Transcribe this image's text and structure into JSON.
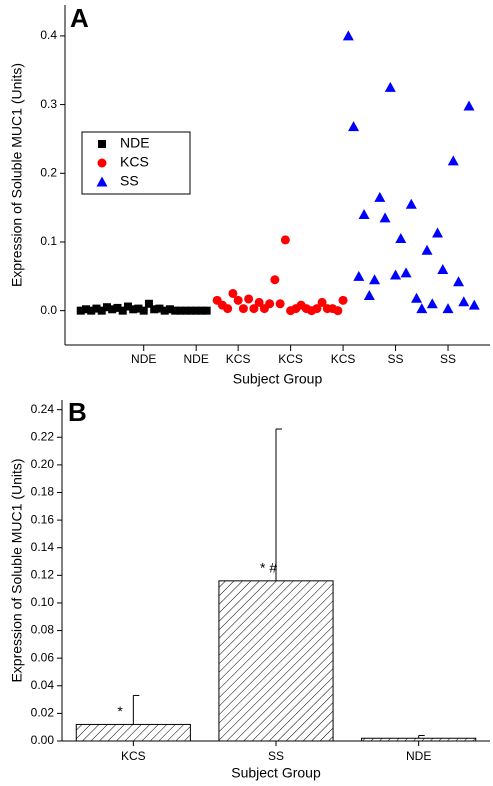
{
  "chart_data": [
    {
      "type": "scatter",
      "panel": "A",
      "y_label": "Expression of Soluble MUC1 (Units)",
      "x_label": "Subject Group",
      "xlim": [
        0,
        81
      ],
      "xticks": [
        {
          "value": 15,
          "label": "NDE"
        },
        {
          "value": 25,
          "label": "NDE"
        },
        {
          "value": 33,
          "label": "KCS"
        },
        {
          "value": 43,
          "label": "KCS"
        },
        {
          "value": 53,
          "label": "KCS"
        },
        {
          "value": 63,
          "label": "SS"
        },
        {
          "value": 73,
          "label": "SS"
        }
      ],
      "ylim": [
        -0.05,
        0.445
      ],
      "yticks": [
        {
          "value": 0,
          "label": "0.0"
        },
        0.1,
        0.2,
        0.3,
        0.4
      ],
      "legend_position": "middle left",
      "series": [
        {
          "name": "NDE",
          "color": "#000000",
          "marker": "square",
          "x": [
            3,
            4,
            5,
            6,
            7,
            8,
            9,
            10,
            11,
            12,
            13,
            14,
            15,
            16,
            17,
            18,
            19,
            20,
            21,
            22,
            23,
            24,
            25,
            26,
            27
          ],
          "values": [
            0,
            0.002,
            0,
            0.003,
            0,
            0.005,
            0.002,
            0.004,
            0,
            0.006,
            0.002,
            0.003,
            0,
            0.01,
            0.002,
            0.003,
            0,
            0.002,
            0,
            0,
            0,
            0,
            0,
            0,
            0
          ]
        },
        {
          "name": "KCS",
          "color": "#ff0000",
          "marker": "circle",
          "x": [
            29,
            30,
            31,
            32,
            33,
            34,
            35,
            36,
            37,
            38,
            39,
            40,
            41,
            42,
            43,
            44,
            45,
            46,
            47,
            48,
            49,
            50,
            51,
            52,
            53
          ],
          "values": [
            0.015,
            0.008,
            0.003,
            0.025,
            0.015,
            0.003,
            0.017,
            0.003,
            0.012,
            0.003,
            0.01,
            0.045,
            0.01,
            0.103,
            0,
            0.003,
            0.008,
            0.003,
            0,
            0.003,
            0.012,
            0.003,
            0.003,
            0,
            0.015
          ]
        },
        {
          "name": "SS",
          "color": "#0000ff",
          "marker": "triangle",
          "x": [
            54,
            55,
            56,
            57,
            58,
            59,
            60,
            61,
            62,
            63,
            64,
            65,
            66,
            67,
            68,
            69,
            70,
            71,
            72,
            73,
            74,
            75,
            76,
            77,
            78
          ],
          "values": [
            0.4,
            0.268,
            0.05,
            0.14,
            0.022,
            0.045,
            0.165,
            0.135,
            0.325,
            0.052,
            0.105,
            0.055,
            0.155,
            0.018,
            0.003,
            0.088,
            0.01,
            0.113,
            0.06,
            0.003,
            0.218,
            0.042,
            0.013,
            0.298,
            0.008
          ]
        }
      ]
    },
    {
      "type": "bar",
      "panel": "B",
      "y_label": "Expression of Soluble MUC1 (Units)",
      "x_label": "Subject Group",
      "categories": [
        "KCS",
        "SS",
        "NDE"
      ],
      "values": [
        0.012,
        0.116,
        0.002
      ],
      "errors": [
        0.021,
        0.11,
        0.002
      ],
      "annotations": [
        {
          "text": "*",
          "category": "KCS"
        },
        {
          "text": "* #",
          "category": "SS"
        }
      ],
      "ylim": [
        0,
        0.247
      ],
      "yticks": [
        {
          "value": 0,
          "label": "0.00"
        },
        0.02,
        0.04,
        0.06,
        0.08,
        {
          "value": 0.1,
          "label": "0.10"
        },
        0.12,
        0.14,
        0.16,
        0.18,
        {
          "value": 0.2,
          "label": "0.20"
        },
        0.22,
        0.24
      ]
    }
  ]
}
